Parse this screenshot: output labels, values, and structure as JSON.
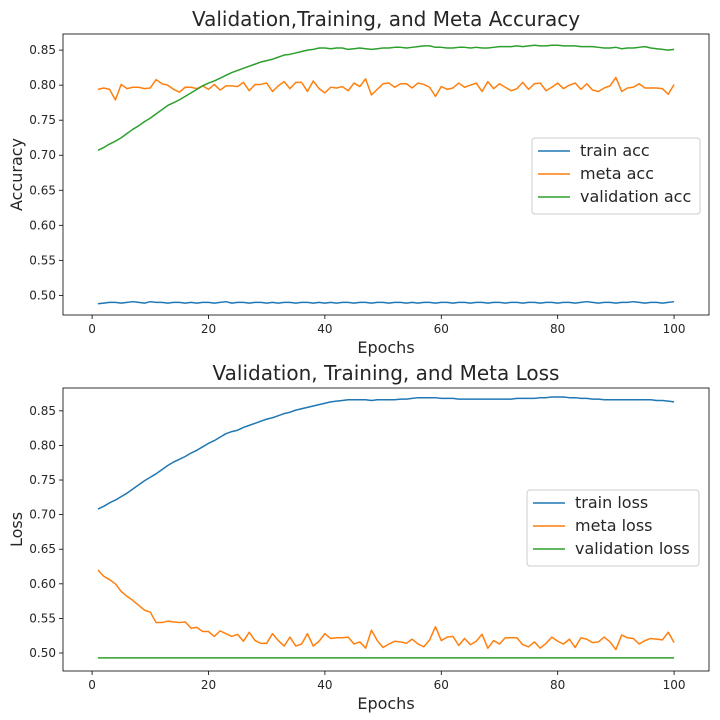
{
  "chart_data": [
    {
      "type": "line",
      "title": "Validation,Training, and Meta Accuracy",
      "xlabel": "Epochs",
      "ylabel": "Accuracy",
      "xlim": [
        -5,
        106
      ],
      "ylim": [
        0.472,
        0.873
      ],
      "xticks": [
        0,
        20,
        40,
        60,
        80,
        100
      ],
      "yticks": [
        0.5,
        0.55,
        0.6,
        0.65,
        0.7,
        0.75,
        0.8,
        0.85
      ],
      "legend_position": "center-right",
      "grid": false,
      "series": [
        {
          "name": "train acc",
          "color": "#1f77b4",
          "values": [
            0.488,
            0.489,
            0.49,
            0.49,
            0.489,
            0.49,
            0.491,
            0.49,
            0.489,
            0.491,
            0.49,
            0.49,
            0.489,
            0.49,
            0.49,
            0.489,
            0.49,
            0.489,
            0.49,
            0.49,
            0.489,
            0.49,
            0.491,
            0.489,
            0.49,
            0.49,
            0.489,
            0.49,
            0.49,
            0.489,
            0.49,
            0.489,
            0.49,
            0.49,
            0.489,
            0.49,
            0.49,
            0.489,
            0.49,
            0.489,
            0.49,
            0.489,
            0.49,
            0.49,
            0.489,
            0.49,
            0.49,
            0.489,
            0.49,
            0.49,
            0.489,
            0.49,
            0.49,
            0.489,
            0.49,
            0.489,
            0.49,
            0.49,
            0.489,
            0.49,
            0.49,
            0.489,
            0.49,
            0.49,
            0.489,
            0.49,
            0.49,
            0.489,
            0.49,
            0.49,
            0.489,
            0.49,
            0.49,
            0.489,
            0.49,
            0.49,
            0.489,
            0.49,
            0.49,
            0.489,
            0.49,
            0.49,
            0.489,
            0.49,
            0.491,
            0.49,
            0.489,
            0.49,
            0.49,
            0.489,
            0.49,
            0.49,
            0.491,
            0.49,
            0.489,
            0.49,
            0.49,
            0.489,
            0.49,
            0.491
          ]
        },
        {
          "name": "meta acc",
          "color": "#ff7f0e",
          "values": [
            0.794,
            0.796,
            0.794,
            0.779,
            0.801,
            0.795,
            0.797,
            0.797,
            0.795,
            0.796,
            0.808,
            0.802,
            0.8,
            0.794,
            0.79,
            0.797,
            0.797,
            0.795,
            0.799,
            0.794,
            0.801,
            0.793,
            0.799,
            0.799,
            0.798,
            0.804,
            0.792,
            0.801,
            0.801,
            0.803,
            0.791,
            0.799,
            0.805,
            0.795,
            0.804,
            0.804,
            0.791,
            0.806,
            0.795,
            0.789,
            0.797,
            0.796,
            0.798,
            0.792,
            0.803,
            0.798,
            0.809,
            0.786,
            0.794,
            0.802,
            0.803,
            0.797,
            0.802,
            0.802,
            0.796,
            0.803,
            0.801,
            0.797,
            0.784,
            0.798,
            0.794,
            0.796,
            0.803,
            0.797,
            0.8,
            0.803,
            0.791,
            0.805,
            0.795,
            0.802,
            0.797,
            0.792,
            0.795,
            0.804,
            0.794,
            0.802,
            0.803,
            0.792,
            0.797,
            0.803,
            0.795,
            0.8,
            0.803,
            0.794,
            0.802,
            0.793,
            0.791,
            0.796,
            0.799,
            0.811,
            0.791,
            0.796,
            0.797,
            0.802,
            0.796,
            0.796,
            0.796,
            0.795,
            0.787,
            0.801
          ]
        },
        {
          "name": "validation acc",
          "color": "#2ca02c",
          "values": [
            0.707,
            0.711,
            0.716,
            0.72,
            0.725,
            0.731,
            0.737,
            0.742,
            0.748,
            0.753,
            0.759,
            0.765,
            0.771,
            0.775,
            0.779,
            0.784,
            0.789,
            0.794,
            0.799,
            0.803,
            0.806,
            0.81,
            0.814,
            0.818,
            0.821,
            0.824,
            0.827,
            0.83,
            0.833,
            0.835,
            0.837,
            0.84,
            0.843,
            0.844,
            0.846,
            0.848,
            0.85,
            0.851,
            0.853,
            0.853,
            0.852,
            0.853,
            0.853,
            0.851,
            0.852,
            0.853,
            0.852,
            0.851,
            0.852,
            0.853,
            0.853,
            0.854,
            0.854,
            0.853,
            0.854,
            0.855,
            0.856,
            0.856,
            0.854,
            0.854,
            0.853,
            0.853,
            0.854,
            0.854,
            0.853,
            0.854,
            0.853,
            0.853,
            0.854,
            0.855,
            0.855,
            0.855,
            0.856,
            0.855,
            0.856,
            0.857,
            0.856,
            0.856,
            0.857,
            0.857,
            0.856,
            0.856,
            0.856,
            0.855,
            0.855,
            0.855,
            0.854,
            0.853,
            0.853,
            0.854,
            0.852,
            0.853,
            0.853,
            0.854,
            0.855,
            0.853,
            0.852,
            0.851,
            0.85,
            0.851
          ]
        }
      ]
    },
    {
      "type": "line",
      "title": "Validation, Training, and Meta Loss",
      "xlabel": "Epochs",
      "ylabel": "Loss",
      "xlim": [
        -5,
        106
      ],
      "ylim": [
        0.474,
        0.883
      ],
      "xticks": [
        0,
        20,
        40,
        60,
        80,
        100
      ],
      "yticks": [
        0.5,
        0.55,
        0.6,
        0.65,
        0.7,
        0.75,
        0.8,
        0.85
      ],
      "legend_position": "center-right",
      "grid": false,
      "series": [
        {
          "name": "train loss",
          "color": "#1f77b4",
          "values": [
            0.708,
            0.712,
            0.717,
            0.721,
            0.726,
            0.731,
            0.737,
            0.743,
            0.749,
            0.754,
            0.759,
            0.765,
            0.771,
            0.776,
            0.78,
            0.784,
            0.789,
            0.793,
            0.798,
            0.803,
            0.807,
            0.812,
            0.817,
            0.82,
            0.822,
            0.826,
            0.829,
            0.832,
            0.835,
            0.838,
            0.84,
            0.843,
            0.846,
            0.848,
            0.851,
            0.853,
            0.855,
            0.857,
            0.859,
            0.861,
            0.863,
            0.864,
            0.865,
            0.866,
            0.866,
            0.866,
            0.866,
            0.865,
            0.866,
            0.866,
            0.866,
            0.866,
            0.867,
            0.867,
            0.868,
            0.869,
            0.869,
            0.869,
            0.869,
            0.868,
            0.868,
            0.868,
            0.867,
            0.867,
            0.867,
            0.867,
            0.867,
            0.867,
            0.867,
            0.867,
            0.867,
            0.867,
            0.868,
            0.868,
            0.868,
            0.868,
            0.869,
            0.869,
            0.87,
            0.87,
            0.87,
            0.869,
            0.869,
            0.868,
            0.868,
            0.867,
            0.867,
            0.866,
            0.866,
            0.866,
            0.866,
            0.866,
            0.866,
            0.866,
            0.866,
            0.866,
            0.865,
            0.865,
            0.864,
            0.863
          ]
        },
        {
          "name": "meta loss",
          "color": "#ff7f0e",
          "values": [
            0.62,
            0.611,
            0.606,
            0.6,
            0.589,
            0.582,
            0.576,
            0.569,
            0.562,
            0.559,
            0.544,
            0.544,
            0.546,
            0.545,
            0.544,
            0.545,
            0.536,
            0.537,
            0.531,
            0.531,
            0.524,
            0.532,
            0.528,
            0.524,
            0.527,
            0.517,
            0.53,
            0.518,
            0.514,
            0.514,
            0.528,
            0.518,
            0.51,
            0.523,
            0.51,
            0.513,
            0.528,
            0.51,
            0.517,
            0.528,
            0.521,
            0.522,
            0.522,
            0.523,
            0.513,
            0.516,
            0.507,
            0.533,
            0.518,
            0.508,
            0.513,
            0.517,
            0.516,
            0.514,
            0.52,
            0.513,
            0.509,
            0.519,
            0.538,
            0.518,
            0.523,
            0.524,
            0.511,
            0.521,
            0.512,
            0.517,
            0.527,
            0.507,
            0.518,
            0.513,
            0.522,
            0.522,
            0.522,
            0.512,
            0.509,
            0.516,
            0.507,
            0.514,
            0.523,
            0.517,
            0.513,
            0.52,
            0.508,
            0.522,
            0.52,
            0.515,
            0.516,
            0.523,
            0.516,
            0.505,
            0.526,
            0.522,
            0.521,
            0.513,
            0.518,
            0.521,
            0.52,
            0.519,
            0.53,
            0.515
          ]
        },
        {
          "name": "validation loss",
          "color": "#2ca02c",
          "values": [
            0.493,
            0.493,
            0.493,
            0.493,
            0.493,
            0.493,
            0.493,
            0.493,
            0.493,
            0.493,
            0.493,
            0.493,
            0.493,
            0.493,
            0.493,
            0.493,
            0.493,
            0.493,
            0.493,
            0.493,
            0.493,
            0.493,
            0.493,
            0.493,
            0.493,
            0.493,
            0.493,
            0.493,
            0.493,
            0.493,
            0.493,
            0.493,
            0.493,
            0.493,
            0.493,
            0.493,
            0.493,
            0.493,
            0.493,
            0.493,
            0.493,
            0.493,
            0.493,
            0.493,
            0.493,
            0.493,
            0.493,
            0.493,
            0.493,
            0.493,
            0.493,
            0.493,
            0.493,
            0.493,
            0.493,
            0.493,
            0.493,
            0.493,
            0.493,
            0.493,
            0.493,
            0.493,
            0.493,
            0.493,
            0.493,
            0.493,
            0.493,
            0.493,
            0.493,
            0.493,
            0.493,
            0.493,
            0.493,
            0.493,
            0.493,
            0.493,
            0.493,
            0.493,
            0.493,
            0.493,
            0.493,
            0.493,
            0.493,
            0.493,
            0.493,
            0.493,
            0.493,
            0.493,
            0.493,
            0.493,
            0.493,
            0.493,
            0.493,
            0.493,
            0.493,
            0.493,
            0.493,
            0.493,
            0.493,
            0.493
          ]
        }
      ]
    }
  ]
}
